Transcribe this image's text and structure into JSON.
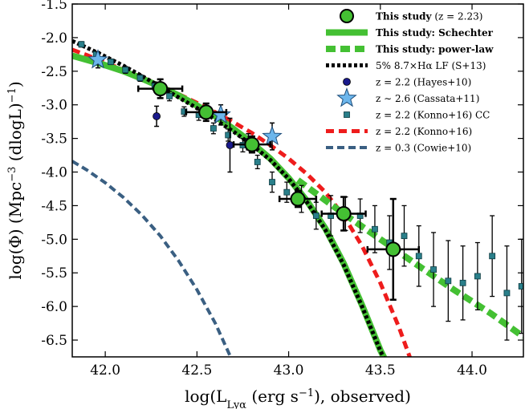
{
  "chart_data": {
    "type": "line",
    "xlabel": "log(L_Lyα (erg s⁻¹), observed)",
    "ylabel": "log(Φ) (Mpc⁻³ (dlogL)⁻¹)",
    "xlim": [
      41.82,
      44.28
    ],
    "ylim": [
      -6.75,
      -1.5
    ],
    "x_ticks": [
      42.0,
      42.5,
      43.0,
      43.5,
      44.0
    ],
    "x_tick_labels": [
      "42.0",
      "42.5",
      "43.0",
      "43.5",
      "44.0"
    ],
    "y_ticks": [
      -1.5,
      -2.0,
      -2.5,
      -3.0,
      -3.5,
      -4.0,
      -4.5,
      -5.0,
      -5.5,
      -6.0,
      -6.5
    ],
    "y_tick_labels": [
      "-1.5",
      "-2.0",
      "-2.5",
      "-3.0",
      "-3.5",
      "-4.0",
      "-4.5",
      "-5.0",
      "-5.5",
      "-6.0",
      "-6.5"
    ],
    "grid": false,
    "legend_position": "top-right",
    "legend": [
      {
        "key": "this_study",
        "label": "This study",
        "suffix": " (z = 2.23)",
        "bold": true
      },
      {
        "key": "schechter",
        "label": "This study: Schechter",
        "suffix": "",
        "bold": true
      },
      {
        "key": "powerlaw",
        "label": "This study: power-law",
        "suffix": "",
        "bold": true
      },
      {
        "key": "sobral13",
        "label": "5% 8.7×Hα LF (S+13)",
        "suffix": "",
        "bold": false
      },
      {
        "key": "hayes10",
        "label": "z = 2.2 (Hayes+10)",
        "suffix": "",
        "bold": false
      },
      {
        "key": "cassata11",
        "label": "z ∼ 2.6 (Cassata+11)",
        "suffix": "",
        "bold": false
      },
      {
        "key": "konno16cc",
        "label": "z = 2.2 (Konno+16) CC",
        "suffix": "",
        "bold": false
      },
      {
        "key": "konno16",
        "label": "z = 2.2 (Konno+16)",
        "suffix": "",
        "bold": false
      },
      {
        "key": "cowie10",
        "label": "z = 0.3 (Cowie+10)",
        "suffix": "",
        "bold": false
      }
    ],
    "colors": {
      "this_study": "#44c033",
      "schechter": "#44c033",
      "powerlaw": "#44c033",
      "sobral13": "#000000",
      "hayes10": "#1a1a8c",
      "cassata11": "#6cb6ec",
      "konno16cc": "#2a7f8a",
      "konno16": "#ee1c1c",
      "cowie10": "#3a5f82"
    },
    "series": [
      {
        "key": "this_study",
        "kind": "points",
        "x": [
          42.3,
          42.55,
          42.8,
          43.05,
          43.3,
          43.57
        ],
        "y": [
          -2.76,
          -3.11,
          -3.59,
          -4.4,
          -4.62,
          -5.15
        ],
        "x_err": [
          0.12,
          0.11,
          0.1,
          0.1,
          0.12,
          0.14
        ],
        "y_err": [
          0.14,
          0.13,
          0.12,
          0.12,
          0.25,
          0.75
        ]
      },
      {
        "key": "schechter",
        "kind": "line",
        "x": [
          41.82,
          41.9,
          42.0,
          42.1,
          42.2,
          42.3,
          42.4,
          42.5,
          42.6,
          42.7,
          42.8,
          42.9,
          43.0,
          43.1,
          43.2,
          43.3,
          43.4,
          43.5,
          43.6
        ],
        "y": [
          -2.27,
          -2.33,
          -2.41,
          -2.5,
          -2.61,
          -2.73,
          -2.86,
          -3.01,
          -3.17,
          -3.36,
          -3.57,
          -3.8,
          -4.09,
          -4.43,
          -4.84,
          -5.36,
          -5.98,
          -6.65,
          -7.2
        ]
      },
      {
        "key": "powerlaw",
        "kind": "line",
        "x": [
          43.05,
          43.3,
          43.5,
          43.7,
          43.9,
          44.1,
          44.28
        ],
        "y": [
          -4.12,
          -4.62,
          -5.0,
          -5.38,
          -5.75,
          -6.1,
          -6.45
        ]
      },
      {
        "key": "sobral13",
        "kind": "line",
        "x": [
          41.82,
          41.9,
          42.0,
          42.1,
          42.2,
          42.3,
          42.4,
          42.5,
          42.6,
          42.7,
          42.8,
          42.9,
          43.0,
          43.1,
          43.2,
          43.3,
          43.4,
          43.5,
          43.6
        ],
        "y": [
          -2.05,
          -2.15,
          -2.28,
          -2.42,
          -2.57,
          -2.73,
          -2.89,
          -3.05,
          -3.22,
          -3.4,
          -3.6,
          -3.82,
          -4.1,
          -4.45,
          -4.86,
          -5.38,
          -6.0,
          -6.66,
          -7.2
        ]
      },
      {
        "key": "hayes10",
        "kind": "points",
        "x": [
          42.28,
          42.68,
          42.78
        ],
        "y": [
          -3.17,
          -3.6,
          -3.55
        ],
        "y_err": [
          0.15,
          0.4,
          0.12
        ]
      },
      {
        "key": "cassata11",
        "kind": "points",
        "x": [
          41.96,
          42.63,
          42.91
        ],
        "y": [
          -2.33,
          -3.15,
          -3.47
        ],
        "y_err": [
          0.12,
          0.15,
          0.2
        ]
      },
      {
        "key": "konno16cc",
        "kind": "points",
        "x": [
          41.87,
          41.95,
          42.03,
          42.11,
          42.19,
          42.27,
          42.35,
          42.43,
          42.51,
          42.59,
          42.67,
          42.75,
          42.83,
          42.91,
          42.99,
          43.07,
          43.15,
          43.23,
          43.31,
          43.39,
          43.47,
          43.55,
          43.63,
          43.71,
          43.79,
          43.87,
          43.95,
          44.03,
          44.11,
          44.19,
          44.27
        ],
        "y": [
          -2.1,
          -2.25,
          -2.36,
          -2.48,
          -2.6,
          -2.72,
          -2.87,
          -3.1,
          -3.15,
          -3.35,
          -3.45,
          -3.6,
          -3.85,
          -4.15,
          -4.3,
          -4.4,
          -4.65,
          -4.65,
          -4.62,
          -4.65,
          -4.85,
          -5.05,
          -4.95,
          -5.25,
          -5.45,
          -5.62,
          -5.65,
          -5.55,
          -5.25,
          -5.8,
          -5.7
        ],
        "y_err": [
          0.04,
          0.04,
          0.04,
          0.05,
          0.05,
          0.06,
          0.07,
          0.07,
          0.08,
          0.08,
          0.09,
          0.1,
          0.1,
          0.15,
          0.15,
          0.2,
          0.2,
          0.3,
          0.25,
          0.25,
          0.35,
          0.4,
          0.45,
          0.45,
          0.55,
          0.6,
          0.55,
          0.5,
          0.6,
          0.7,
          0.7
        ]
      },
      {
        "key": "konno16",
        "kind": "line",
        "x": [
          41.82,
          41.9,
          42.0,
          42.1,
          42.2,
          42.3,
          42.4,
          42.5,
          42.6,
          42.7,
          42.8,
          42.9,
          43.0,
          43.1,
          43.2,
          43.3,
          43.4,
          43.5,
          43.6,
          43.7
        ],
        "y": [
          -2.18,
          -2.26,
          -2.37,
          -2.48,
          -2.59,
          -2.71,
          -2.84,
          -2.97,
          -3.11,
          -3.26,
          -3.42,
          -3.6,
          -3.8,
          -4.03,
          -4.3,
          -4.65,
          -5.1,
          -5.65,
          -6.3,
          -7.05
        ]
      },
      {
        "key": "cowie10",
        "kind": "line",
        "x": [
          41.82,
          41.9,
          42.0,
          42.1,
          42.2,
          42.3,
          42.4,
          42.5,
          42.6,
          42.7
        ],
        "y": [
          -3.84,
          -3.97,
          -4.16,
          -4.38,
          -4.64,
          -4.95,
          -5.32,
          -5.75,
          -6.25,
          -6.85
        ]
      }
    ]
  }
}
